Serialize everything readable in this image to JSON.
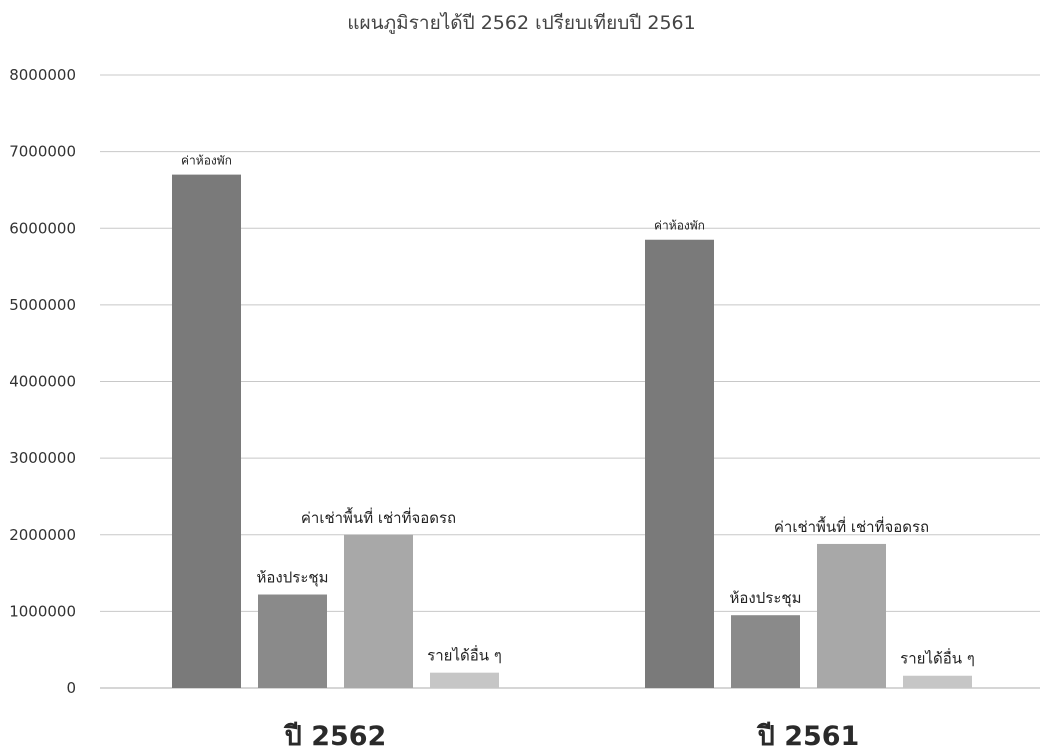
{
  "chart_data": {
    "type": "bar",
    "title": "แผนภูมิรายได้ปี 2562 เปรียบเทียบปี 2561",
    "xlabel": "",
    "ylabel": "",
    "ylim": [
      0,
      8000000
    ],
    "yticks": [
      0,
      1000000,
      2000000,
      3000000,
      4000000,
      5000000,
      6000000,
      7000000,
      8000000
    ],
    "grid": true,
    "categories": [
      "ปี 2562",
      "ปี 2561"
    ],
    "series": [
      {
        "name": "ค่าห้องพัก",
        "values": [
          6700000,
          5850000
        ],
        "color": "#7a7a7a"
      },
      {
        "name": "ห้องประชุม",
        "values": [
          1220000,
          950000
        ],
        "color": "#8a8a8a"
      },
      {
        "name": "ค่าเช่าพื้นที่ เช่าที่จอดรถ",
        "values": [
          2000000,
          1880000
        ],
        "color": "#a8a8a8"
      },
      {
        "name": "รายได้อื่น ๆ",
        "values": [
          200000,
          160000
        ],
        "color": "#c6c6c6"
      }
    ]
  }
}
